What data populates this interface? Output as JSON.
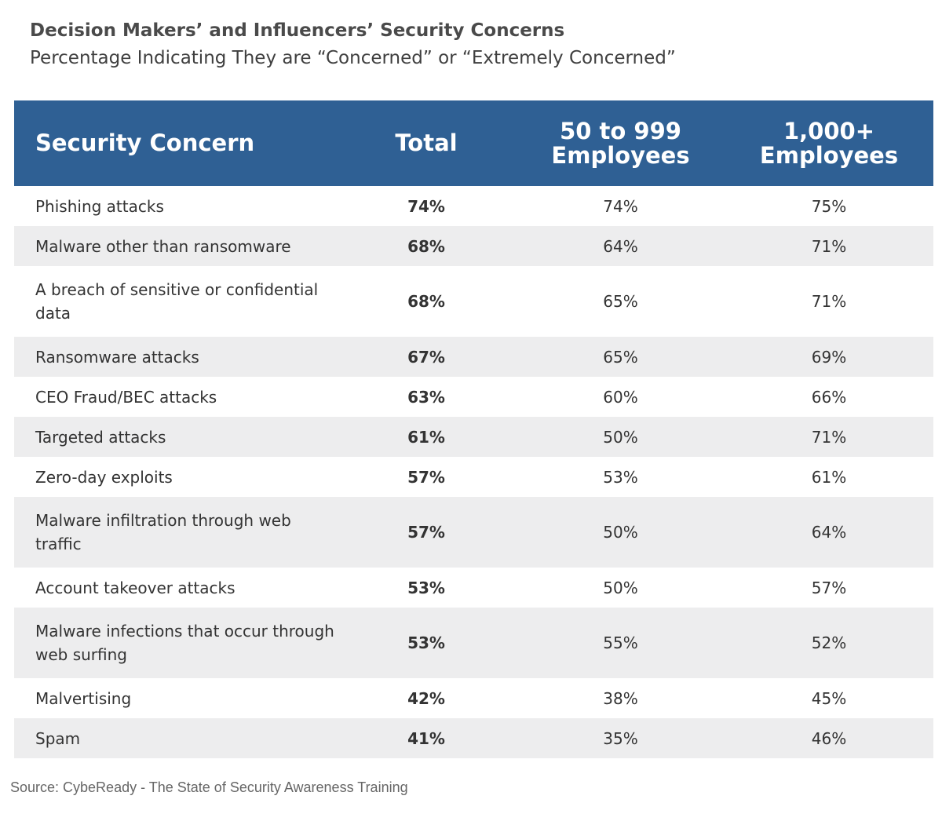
{
  "title": "Decision Makers’ and Influencers’ Security Concerns",
  "subtitle": "Percentage Indicating They are “Concerned” or “Extremely Concerned”",
  "source": "Source: CybeReady - The State of Security Awareness Training",
  "chart_data": {
    "type": "table",
    "columns": [
      "Security Concern",
      "Total",
      "50 to 999 Employees",
      "1,000+ Employees"
    ],
    "rows": [
      {
        "concern": "Phishing attacks",
        "total": "74%",
        "mid": "74%",
        "large": "75%"
      },
      {
        "concern": "Malware other than ransomware",
        "total": "68%",
        "mid": "64%",
        "large": "71%"
      },
      {
        "concern": "A breach of sensitive or confidential data",
        "total": "68%",
        "mid": "65%",
        "large": "71%"
      },
      {
        "concern": "Ransomware attacks",
        "total": "67%",
        "mid": "65%",
        "large": "69%"
      },
      {
        "concern": "CEO Fraud/BEC attacks",
        "total": "63%",
        "mid": "60%",
        "large": "66%"
      },
      {
        "concern": "Targeted attacks",
        "total": "61%",
        "mid": "50%",
        "large": "71%"
      },
      {
        "concern": "Zero-day exploits",
        "total": "57%",
        "mid": "53%",
        "large": "61%"
      },
      {
        "concern": "Malware infiltration through web traffic",
        "total": "57%",
        "mid": "50%",
        "large": "64%"
      },
      {
        "concern": "Account takeover attacks",
        "total": "53%",
        "mid": "50%",
        "large": "57%"
      },
      {
        "concern": "Malware infections that occur through web surfing",
        "total": "53%",
        "mid": "55%",
        "large": "52%"
      },
      {
        "concern": "Malvertising",
        "total": "42%",
        "mid": "38%",
        "large": "45%"
      },
      {
        "concern": "Spam",
        "total": "41%",
        "mid": "35%",
        "large": "46%"
      }
    ]
  },
  "colors": {
    "header_bg": "#2f6094",
    "header_text": "#ffffff",
    "stripe": "#ededee"
  }
}
